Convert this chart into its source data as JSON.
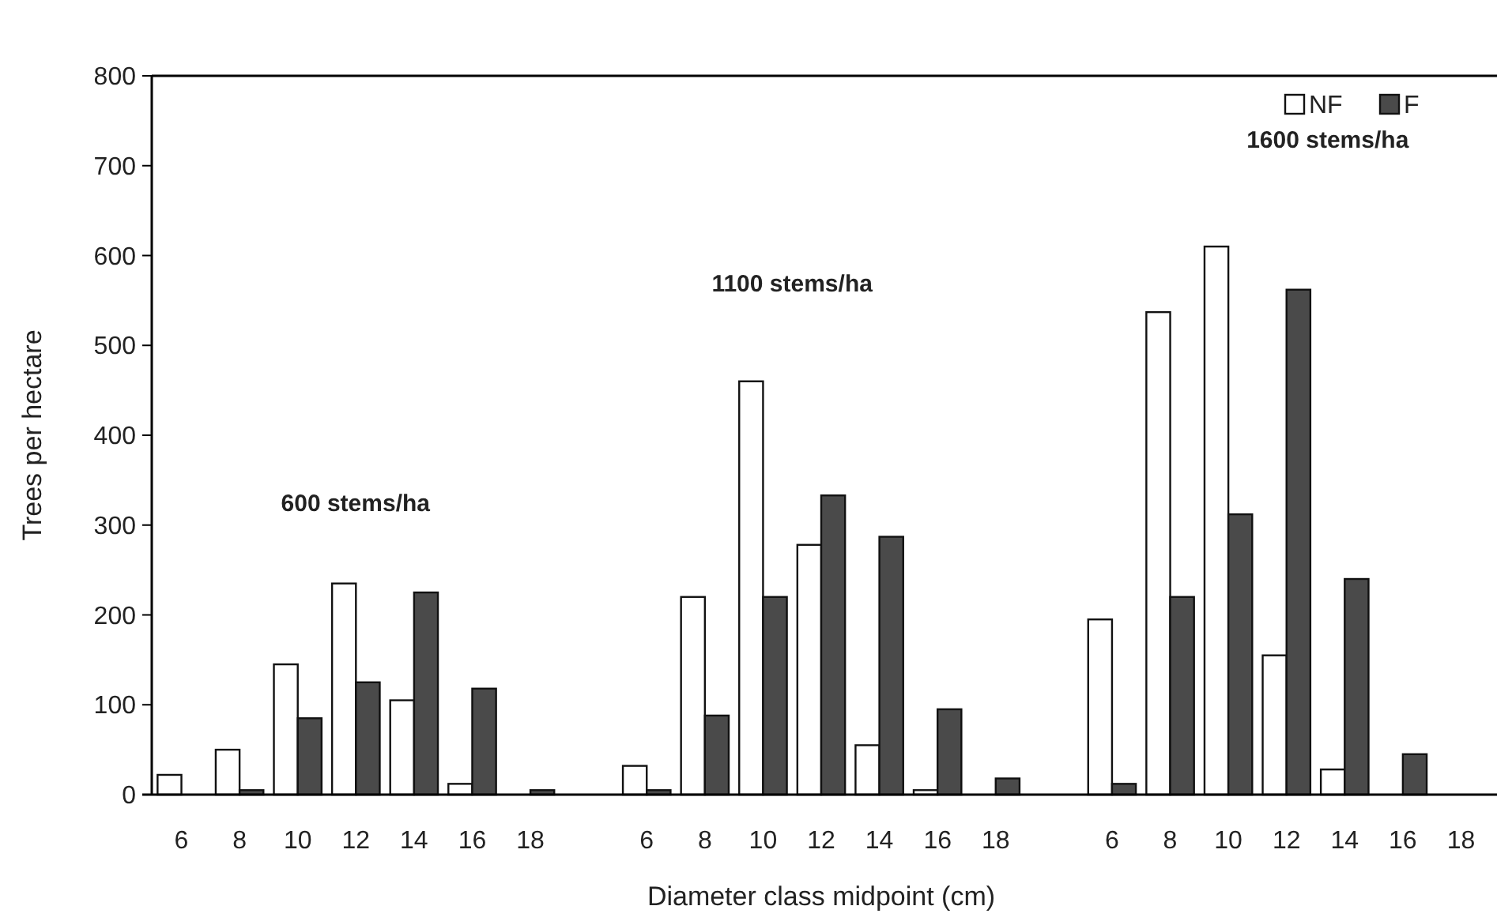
{
  "chart_data": {
    "type": "bar",
    "xlabel": "Diameter class midpoint (cm)",
    "ylabel": "Trees per hectare",
    "categories": [
      "6",
      "8",
      "10",
      "12",
      "14",
      "16",
      "18",
      null,
      "6",
      "8",
      "10",
      "12",
      "14",
      "16",
      "18",
      null,
      "6",
      "8",
      "10",
      "12",
      "14",
      "16",
      "18"
    ],
    "series": [
      {
        "name": "NF",
        "color": "#ffffff",
        "values": [
          22,
          50,
          145,
          235,
          105,
          12,
          0,
          null,
          32,
          220,
          460,
          278,
          55,
          5,
          0,
          null,
          195,
          537,
          610,
          155,
          28,
          0,
          0
        ]
      },
      {
        "name": "F",
        "color": "#4a4a4a",
        "values": [
          0,
          5,
          85,
          125,
          225,
          118,
          5,
          null,
          5,
          88,
          220,
          333,
          287,
          95,
          18,
          null,
          12,
          220,
          312,
          562,
          240,
          45,
          0
        ]
      }
    ],
    "ylim": [
      0,
      800
    ],
    "yticks": [
      0,
      100,
      200,
      300,
      400,
      500,
      600,
      700,
      800
    ],
    "legend": "top right",
    "annotations": [
      "600 stems/ha",
      "1100 stems/ha",
      "1600 stems/ha"
    ]
  }
}
